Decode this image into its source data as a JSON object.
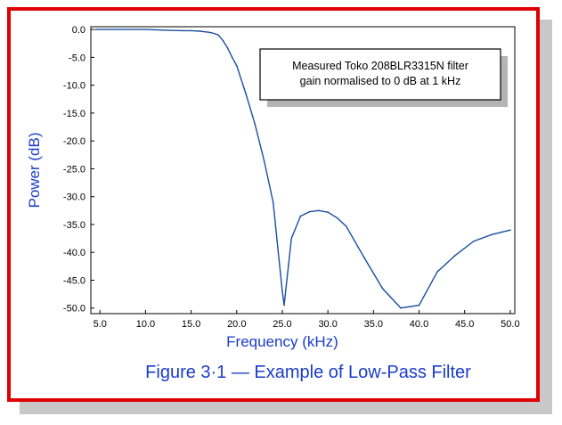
{
  "colors": {
    "frame": "#e00000",
    "line": "#1a4fa0",
    "accent_text": "#1a3cc8",
    "shadow": "#c8c8c8"
  },
  "figure_caption": "Figure 3·1 — Example of Low-Pass Filter",
  "chart_data": {
    "type": "line",
    "xlabel": "Frequency (kHz)",
    "ylabel": "Power (dB)",
    "xlim": [
      4.0,
      50.5
    ],
    "ylim": [
      -51.0,
      0.5
    ],
    "x_ticks": [
      "5.0",
      "10.0",
      "15.0",
      "20.0",
      "25.0",
      "30.0",
      "35.0",
      "40.0",
      "45.0",
      "50.0"
    ],
    "y_ticks": [
      "0.0",
      "-5.0",
      "-10.0",
      "-15.0",
      "-20.0",
      "-25.0",
      "-30.0",
      "-35.0",
      "-40.0",
      "-45.0",
      "-50.0"
    ],
    "grid": false,
    "annotation": [
      "Measured Toko 208BLR3315N  filter",
      "gain normalised to 0 dB at 1 kHz"
    ],
    "series": [
      {
        "x": [
          4.5,
          8,
          10,
          12,
          14,
          15,
          16,
          17,
          17.5,
          18,
          18.5,
          19,
          19.5,
          20,
          21,
          22,
          23,
          24,
          24.5,
          25,
          25.2,
          26,
          27,
          28,
          29,
          30,
          31,
          32,
          34,
          36,
          38,
          40,
          42,
          44,
          46,
          48,
          50
        ],
        "y": [
          0,
          0,
          0,
          -0.1,
          -0.2,
          -0.2,
          -0.3,
          -0.5,
          -0.7,
          -1.0,
          -2.0,
          -3.3,
          -5.0,
          -6.5,
          -11.5,
          -17.0,
          -23.5,
          -31.0,
          -39.0,
          -47.0,
          -49.5,
          -37.5,
          -33.5,
          -32.7,
          -32.5,
          -32.8,
          -33.8,
          -35.3,
          -41.0,
          -46.5,
          -50.0,
          -49.5,
          -43.5,
          -40.5,
          -38.0,
          -36.8,
          -36.0
        ]
      }
    ]
  }
}
